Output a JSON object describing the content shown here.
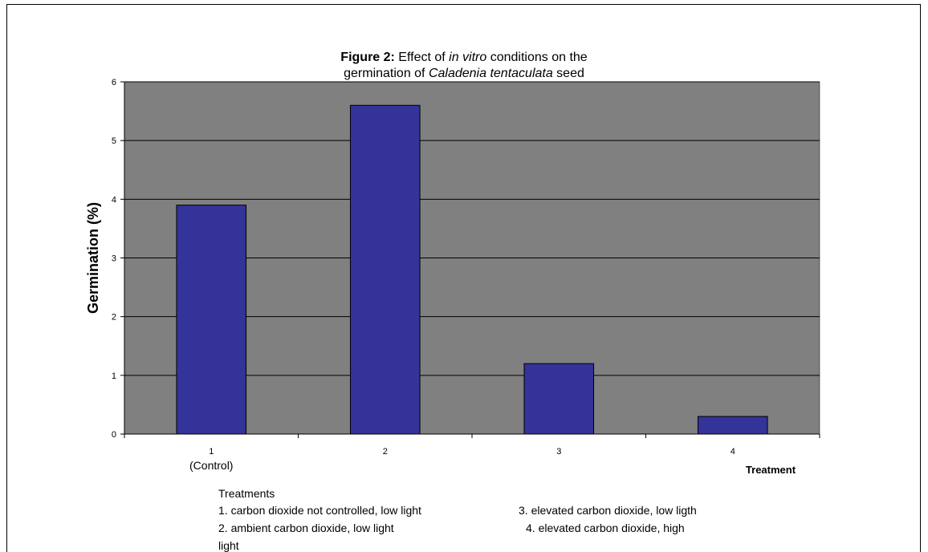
{
  "chart_data": {
    "type": "bar",
    "title": [
      [
        {
          "text": "Figure 2:",
          "style": "bold"
        },
        {
          "text": " Effect of ",
          "style": "normal"
        },
        {
          "text": "in vitro",
          "style": "italic"
        },
        {
          "text": " conditions on the",
          "style": "normal"
        }
      ],
      [
        {
          "text": "germination of ",
          "style": "normal"
        },
        {
          "text": "Caladenia tentaculata",
          "style": "italic"
        },
        {
          "text": " seed",
          "style": "normal"
        }
      ]
    ],
    "categories": [
      "1",
      "2",
      "3",
      "4"
    ],
    "annotations": [
      {
        "category": 0,
        "text": "(Control)"
      }
    ],
    "values": [
      3.9,
      5.6,
      1.2,
      0.3
    ],
    "color": "#333399",
    "plot_background": "#808080",
    "ylim": [
      0,
      6
    ],
    "yticks": [
      0,
      1,
      2,
      3,
      4,
      5,
      6
    ],
    "grid": true,
    "x_label": "Treatment",
    "y_label": "Germination (%)",
    "notes": {
      "heading": "Treatments",
      "items": [
        "1. carbon dioxide not controlled, low light",
        "3. elevated carbon dioxide, low ligth",
        "2. ambient carbon dioxide, low light",
        "4. elevated carbon dioxide, high",
        "light"
      ]
    }
  }
}
